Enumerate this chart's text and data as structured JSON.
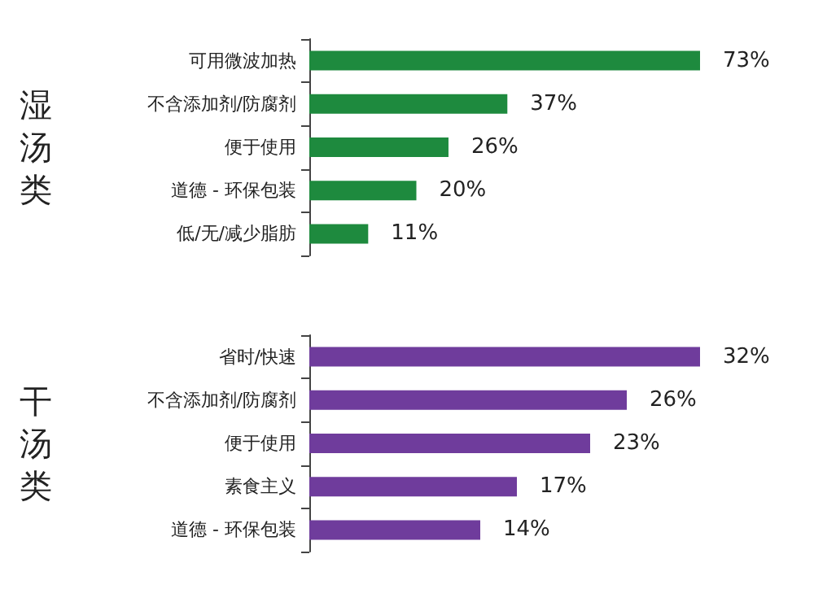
{
  "chart_data": [
    {
      "type": "bar",
      "orientation": "horizontal",
      "ylabel": "湿汤类",
      "categories": [
        "可用微波加热",
        "不含添加剂/防腐剂",
        "便于使用",
        "道德 - 环保包装",
        "低/无/减少脂肪"
      ],
      "values": [
        73,
        37,
        26,
        20,
        11
      ],
      "value_labels": [
        "73%",
        "37%",
        "26%",
        "20%",
        "11%"
      ],
      "color": "#1e8a3e",
      "tick_labels": "y",
      "grid": false
    },
    {
      "type": "bar",
      "orientation": "horizontal",
      "ylabel": "干汤类",
      "categories": [
        "省时/快速",
        "不含添加剂/防腐剂",
        "便于使用",
        "素食主义",
        "道德 - 环保包装"
      ],
      "values": [
        32,
        26,
        23,
        17,
        14
      ],
      "value_labels": [
        "32%",
        "26%",
        "23%",
        "17%",
        "14%"
      ],
      "color": "#6f3c9c",
      "tick_labels": "y",
      "grid": false
    }
  ]
}
